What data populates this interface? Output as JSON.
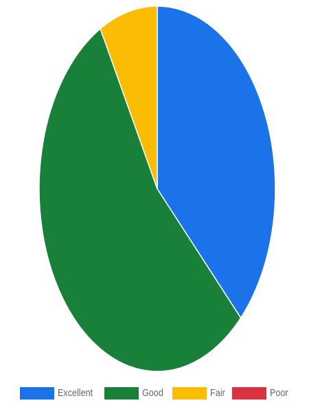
{
  "chart_data": {
    "type": "pie",
    "categories": [
      "Excellent",
      "Good",
      "Fair",
      "Poor"
    ],
    "values": [
      37.5,
      54.5,
      8,
      0
    ],
    "colors": [
      "#1a73e8",
      "#188038",
      "#fbbc04",
      "#d93240"
    ],
    "legend_position": "bottom",
    "title": "",
    "start_angle": "top",
    "direction": "clockwise"
  },
  "legend": {
    "items": [
      {
        "label": "Excellent",
        "color": "#1a73e8"
      },
      {
        "label": "Good",
        "color": "#188038"
      },
      {
        "label": "Fair",
        "color": "#fbbc04"
      },
      {
        "label": "Poor",
        "color": "#d93240"
      }
    ]
  }
}
